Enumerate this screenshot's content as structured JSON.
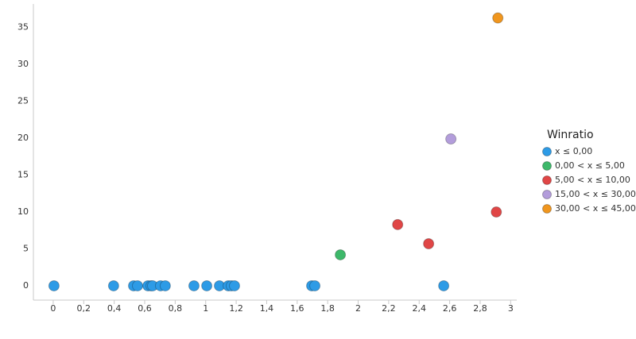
{
  "chart_data": {
    "type": "scatter",
    "legend_title": "Winratio",
    "legend": "right",
    "grid": false,
    "xlim": [
      -0.13,
      3.04
    ],
    "ylim": [
      -1.94,
      38.2
    ],
    "xticks": [
      0,
      {
        "value": 0.2,
        "label": "0,2"
      },
      {
        "value": 0.4,
        "label": "0,4"
      },
      {
        "value": 0.6,
        "label": "0,6"
      },
      {
        "value": 0.8,
        "label": "0,8"
      },
      1,
      {
        "value": 1.2,
        "label": "1,2"
      },
      {
        "value": 1.4,
        "label": "1,4"
      },
      {
        "value": 1.6,
        "label": "1,6"
      },
      {
        "value": 1.8,
        "label": "1,8"
      },
      2,
      {
        "value": 2.2,
        "label": "2,2"
      },
      {
        "value": 2.4,
        "label": "2,4"
      },
      {
        "value": 2.6,
        "label": "2,6"
      },
      {
        "value": 2.8,
        "label": "2,8"
      },
      3
    ],
    "yticks": [
      0,
      5,
      10,
      15,
      20,
      25,
      30,
      35
    ],
    "series": [
      {
        "name": "x ≤ 0,00",
        "color": "#2d9be6",
        "x": [
          0.005,
          0.396,
          0.527,
          0.553,
          0.621,
          0.642,
          0.652,
          0.704,
          0.735,
          0.923,
          1.007,
          1.09,
          1.148,
          1.168,
          1.189,
          1.695,
          1.716,
          2.561
        ],
        "values": [
          0,
          0,
          0,
          0,
          0,
          0,
          0,
          0,
          0,
          0,
          0,
          0,
          0,
          0,
          0,
          0,
          0,
          0
        ]
      },
      {
        "name": "0,00 < x ≤ 5,00",
        "color": "#3db86a",
        "x": [
          1.883
        ],
        "values": [
          4.2
        ]
      },
      {
        "name": "5,00 < x ≤ 10,00",
        "color": "#e04646",
        "x": [
          2.259,
          2.462,
          2.906
        ],
        "values": [
          8.3,
          5.7,
          10.0
        ]
      },
      {
        "name": "15,00 < x ≤ 30,00",
        "color": "#b39ddb",
        "x": [
          2.608
        ],
        "values": [
          19.9
        ]
      },
      {
        "name": "30,00 < x ≤ 45,00",
        "color": "#f0961e",
        "x": [
          2.916
        ],
        "values": [
          36.3
        ]
      }
    ]
  }
}
